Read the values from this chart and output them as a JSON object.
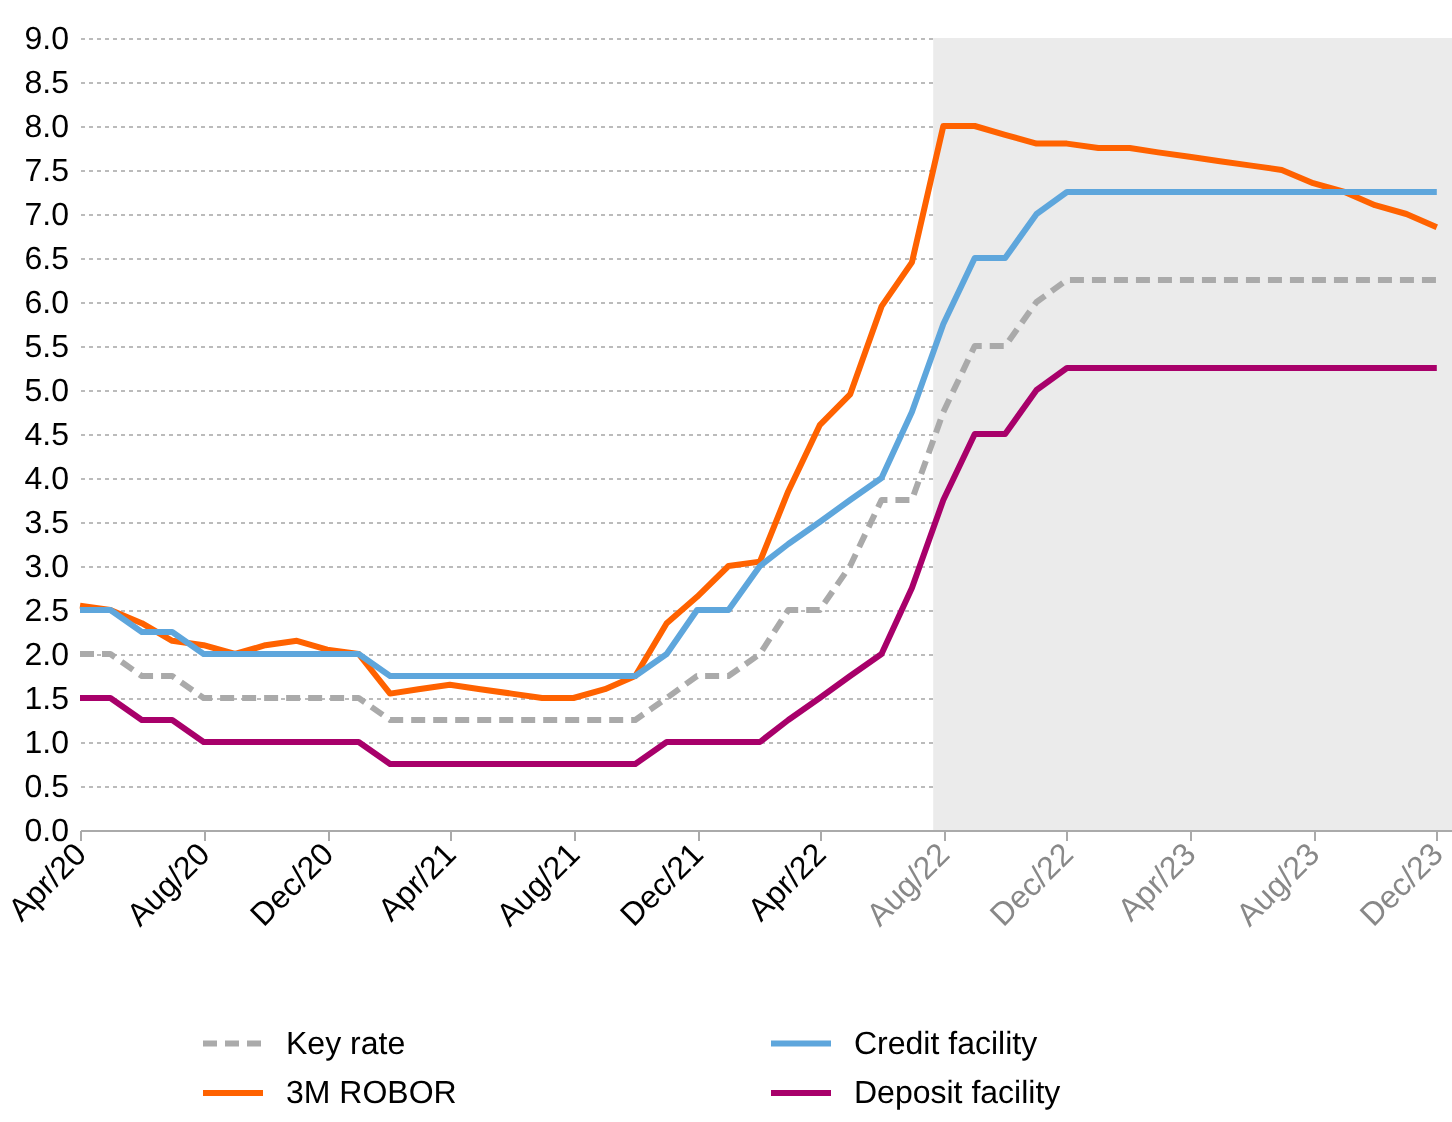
{
  "chart_data": {
    "type": "line",
    "x": [
      "2020-04",
      "2020-05",
      "2020-06",
      "2020-07",
      "2020-08",
      "2020-09",
      "2020-10",
      "2020-11",
      "2020-12",
      "2021-01",
      "2021-02",
      "2021-03",
      "2021-04",
      "2021-05",
      "2021-06",
      "2021-07",
      "2021-08",
      "2021-09",
      "2021-10",
      "2021-11",
      "2021-12",
      "2022-01",
      "2022-02",
      "2022-03",
      "2022-04",
      "2022-05",
      "2022-06",
      "2022-07",
      "2022-08",
      "2022-09",
      "2022-10",
      "2022-11",
      "2022-12",
      "2023-01",
      "2023-02",
      "2023-03",
      "2023-04",
      "2023-05",
      "2023-06",
      "2023-07",
      "2023-08",
      "2023-09",
      "2023-10",
      "2023-11",
      "2023-12"
    ],
    "series": [
      {
        "name": "Key rate",
        "color": "#aaaaaa",
        "line_style": "dashed",
        "values": [
          2,
          2,
          1.75,
          1.75,
          1.5,
          1.5,
          1.5,
          1.5,
          1.5,
          1.5,
          1.25,
          1.25,
          1.25,
          1.25,
          1.25,
          1.25,
          1.25,
          1.25,
          1.25,
          1.5,
          1.75,
          1.75,
          2,
          2.5,
          2.5,
          3,
          3.75,
          3.75,
          4.75,
          5.5,
          5.5,
          6,
          6.25,
          6.25,
          6.25,
          6.25,
          6.25,
          6.25,
          6.25,
          6.25,
          6.25,
          6.25,
          6.25,
          6.25,
          6.25
        ]
      },
      {
        "name": "3M ROBOR",
        "color": "#ff6200",
        "line_style": "solid",
        "values": [
          2.55,
          2.5,
          2.35,
          2.15,
          2.1,
          2.0,
          2.1,
          2.15,
          2.05,
          2.0,
          1.55,
          1.6,
          1.65,
          1.6,
          1.55,
          1.5,
          1.5,
          1.6,
          1.75,
          2.35,
          2.65,
          3.0,
          3.05,
          3.85,
          4.6,
          4.95,
          5.95,
          6.45,
          8.0,
          8.0,
          7.9,
          7.8,
          7.8,
          7.75,
          7.75,
          7.7,
          7.65,
          7.6,
          7.55,
          7.5,
          7.35,
          7.25,
          7.1,
          7.0,
          6.85
        ]
      },
      {
        "name": "Credit facility",
        "color": "#5ea6dc",
        "line_style": "solid",
        "values": [
          2.5,
          2.5,
          2.25,
          2.25,
          2,
          2,
          2,
          2,
          2,
          2,
          1.75,
          1.75,
          1.75,
          1.75,
          1.75,
          1.75,
          1.75,
          1.75,
          1.75,
          2,
          2.5,
          2.5,
          3,
          3.25,
          3.5,
          3.75,
          4,
          4.75,
          5.75,
          6.5,
          6.5,
          7,
          7.25,
          7.25,
          7.25,
          7.25,
          7.25,
          7.25,
          7.25,
          7.25,
          7.25,
          7.25,
          7.25,
          7.25,
          7.25
        ]
      },
      {
        "name": "Deposit facility",
        "color": "#a8006a",
        "line_style": "solid",
        "values": [
          1.5,
          1.5,
          1.25,
          1.25,
          1,
          1,
          1,
          1,
          1,
          1,
          0.75,
          0.75,
          0.75,
          0.75,
          0.75,
          0.75,
          0.75,
          0.75,
          0.75,
          1,
          1,
          1,
          1,
          1.25,
          1.5,
          1.75,
          2,
          2.75,
          3.75,
          4.5,
          4.5,
          5,
          5.25,
          5.25,
          5.25,
          5.25,
          5.25,
          5.25,
          5.25,
          5.25,
          5.25,
          5.25,
          5.25,
          5.25,
          5.25
        ]
      }
    ],
    "xlim": [
      "2020-04",
      "2023-12-16"
    ],
    "xticks": [
      {
        "value": "2020-04",
        "label": "Apr/20"
      },
      {
        "value": "2020-08",
        "label": "Aug/20"
      },
      {
        "value": "2020-12",
        "label": "Dec/20"
      },
      {
        "value": "2021-04",
        "label": "Apr/21"
      },
      {
        "value": "2021-08",
        "label": "Aug/21"
      },
      {
        "value": "2021-12",
        "label": "Dec/21"
      },
      {
        "value": "2022-04",
        "label": "Apr/22"
      },
      {
        "value": "2022-08",
        "label": "Aug/22"
      },
      {
        "value": "2022-12",
        "label": "Dec/22"
      },
      {
        "value": "2023-04",
        "label": "Apr/23"
      },
      {
        "value": "2023-08",
        "label": "Aug/23"
      },
      {
        "value": "2023-12",
        "label": "Dec/23"
      }
    ],
    "ylim": [
      0,
      9
    ],
    "yticks": [
      {
        "value": 0,
        "label": "0.0"
      },
      {
        "value": 0.5,
        "label": "0.5"
      },
      {
        "value": 1,
        "label": "1.0"
      },
      {
        "value": 1.5,
        "label": "1.5"
      },
      {
        "value": 2,
        "label": "2.0"
      },
      {
        "value": 2.5,
        "label": "2.5"
      },
      {
        "value": 3,
        "label": "3.0"
      },
      {
        "value": 3.5,
        "label": "3.5"
      },
      {
        "value": 4,
        "label": "4.0"
      },
      {
        "value": 4.5,
        "label": "4.5"
      },
      {
        "value": 5,
        "label": "5.0"
      },
      {
        "value": 5.5,
        "label": "5.5"
      },
      {
        "value": 6,
        "label": "6.0"
      },
      {
        "value": 6.5,
        "label": "6.5"
      },
      {
        "value": 7,
        "label": "7.0"
      },
      {
        "value": 7.5,
        "label": "7.5"
      },
      {
        "value": 8,
        "label": "8.0"
      },
      {
        "value": 8.5,
        "label": "8.5"
      },
      {
        "value": 9,
        "label": "9.0"
      }
    ],
    "bands": [
      {
        "axis": "x",
        "from": "2022-07-22",
        "to": "2023-12-16",
        "color": "#ebebeb"
      }
    ],
    "grid": "y",
    "legend": "bottom",
    "marker": "none"
  }
}
